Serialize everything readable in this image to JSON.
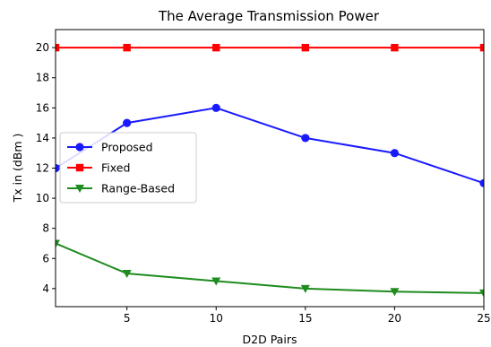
{
  "chart_data": {
    "type": "line",
    "title": "The Average Transmission Power",
    "xlabel": "D2D Pairs",
    "ylabel": "Tx in (dBm )",
    "xlim": [
      1,
      25
    ],
    "ylim": [
      2.8,
      21.2
    ],
    "xticks": [
      5,
      10,
      15,
      20,
      25
    ],
    "yticks": [
      4,
      6,
      8,
      10,
      12,
      14,
      16,
      18,
      20
    ],
    "grid": false,
    "legend_position": "center-left",
    "series": [
      {
        "name": "Proposed",
        "color": "#1a1aff",
        "marker": "circle",
        "x": [
          1,
          5,
          10,
          15,
          20,
          25
        ],
        "y": [
          12,
          15,
          16,
          14,
          13,
          11
        ]
      },
      {
        "name": "Fixed",
        "color": "#ff0000",
        "marker": "square",
        "x": [
          1,
          5,
          10,
          15,
          20,
          25
        ],
        "y": [
          20,
          20,
          20,
          20,
          20,
          20
        ]
      },
      {
        "name": "Range-Based",
        "color": "#1e8c1e",
        "marker": "triangle-down",
        "x": [
          1,
          5,
          10,
          15,
          20,
          25
        ],
        "y": [
          7,
          5,
          4.5,
          4,
          3.8,
          3.7
        ]
      }
    ]
  }
}
